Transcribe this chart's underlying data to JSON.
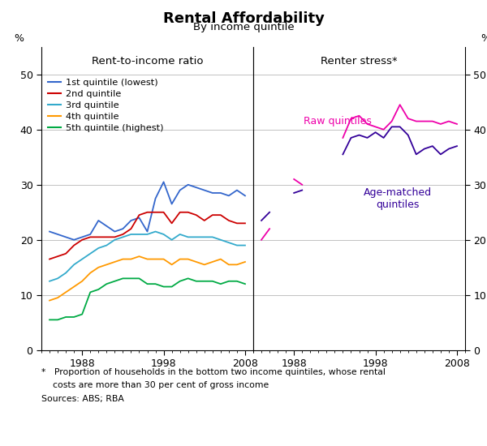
{
  "title": "Rental Affordability",
  "subtitle": "By income quintile",
  "left_panel_title": "Rent-to-income ratio",
  "right_panel_title": "Renter stress*",
  "ylabel": "%",
  "ylim": [
    0,
    55
  ],
  "yticks": [
    0,
    10,
    20,
    30,
    40,
    50
  ],
  "footnote_line1": "*   Proportion of households in the bottom two income quintiles, whose rental",
  "footnote_line2": "    costs are more than 30 per cent of gross income",
  "footnote_line3": "Sources: ABS; RBA",
  "left_years": [
    1984,
    1985,
    1986,
    1987,
    1988,
    1989,
    1990,
    1991,
    1992,
    1993,
    1994,
    1995,
    1996,
    1997,
    1998,
    1999,
    2000,
    2001,
    2002,
    2003,
    2004,
    2005,
    2006,
    2007,
    2008
  ],
  "left_xlim": [
    1983,
    2009
  ],
  "left_xticks": [
    1988,
    1998,
    2008
  ],
  "q1": [
    21.5,
    21.0,
    20.5,
    20.0,
    20.5,
    21.0,
    23.5,
    22.5,
    21.5,
    22.0,
    23.5,
    24.0,
    21.5,
    27.5,
    30.5,
    26.5,
    29.0,
    30.0,
    29.5,
    29.0,
    28.5,
    28.5,
    28.0,
    29.0,
    28.0
  ],
  "q2": [
    16.5,
    17.0,
    17.5,
    19.0,
    20.0,
    20.5,
    20.5,
    20.5,
    20.5,
    21.0,
    22.0,
    24.5,
    25.0,
    25.0,
    25.0,
    23.0,
    25.0,
    25.0,
    24.5,
    23.5,
    24.5,
    24.5,
    23.5,
    23.0,
    23.0
  ],
  "q3": [
    12.5,
    13.0,
    14.0,
    15.5,
    16.5,
    17.5,
    18.5,
    19.0,
    20.0,
    20.5,
    21.0,
    21.0,
    21.0,
    21.5,
    21.0,
    20.0,
    21.0,
    20.5,
    20.5,
    20.5,
    20.5,
    20.0,
    19.5,
    19.0,
    19.0
  ],
  "q4": [
    9.0,
    9.5,
    10.5,
    11.5,
    12.5,
    14.0,
    15.0,
    15.5,
    16.0,
    16.5,
    16.5,
    17.0,
    16.5,
    16.5,
    16.5,
    15.5,
    16.5,
    16.5,
    16.0,
    15.5,
    16.0,
    16.5,
    15.5,
    15.5,
    16.0
  ],
  "q5": [
    5.5,
    5.5,
    6.0,
    6.0,
    6.5,
    10.5,
    11.0,
    12.0,
    12.5,
    13.0,
    13.0,
    13.0,
    12.0,
    12.0,
    11.5,
    11.5,
    12.5,
    13.0,
    12.5,
    12.5,
    12.5,
    12.0,
    12.5,
    12.5,
    12.0
  ],
  "right_years": [
    1984,
    1985,
    1986,
    1987,
    1988,
    1989,
    1990,
    1991,
    1992,
    1993,
    1994,
    1995,
    1996,
    1997,
    1998,
    1999,
    2000,
    2001,
    2002,
    2003,
    2004,
    2005,
    2006,
    2007,
    2008
  ],
  "right_xlim": [
    1983,
    2009
  ],
  "right_xticks": [
    1988,
    1998,
    2008
  ],
  "raw": [
    20.0,
    22.0,
    null,
    null,
    31.0,
    30.0,
    null,
    null,
    null,
    null,
    38.5,
    42.0,
    42.5,
    41.0,
    40.5,
    40.0,
    41.5,
    44.5,
    42.0,
    41.5,
    41.5,
    41.5,
    41.0,
    41.5,
    41.0
  ],
  "age_matched": [
    23.5,
    25.0,
    null,
    null,
    28.5,
    29.0,
    null,
    null,
    null,
    null,
    35.5,
    38.5,
    39.0,
    38.5,
    39.5,
    38.5,
    40.5,
    40.5,
    39.0,
    35.5,
    36.5,
    37.0,
    35.5,
    36.5,
    37.0
  ],
  "color_q1": "#3366cc",
  "color_q2": "#cc0000",
  "color_q3": "#33aacc",
  "color_q4": "#ff9900",
  "color_q5": "#00aa44",
  "color_raw": "#ee00aa",
  "color_age": "#330099",
  "legend_labels": [
    "1st quintile (lowest)",
    "2nd quintile",
    "3rd quintile",
    "4th quintile",
    "5th quintile (highest)"
  ],
  "raw_label": "Raw quintiles",
  "age_label": "Age-matched\nquintiles"
}
